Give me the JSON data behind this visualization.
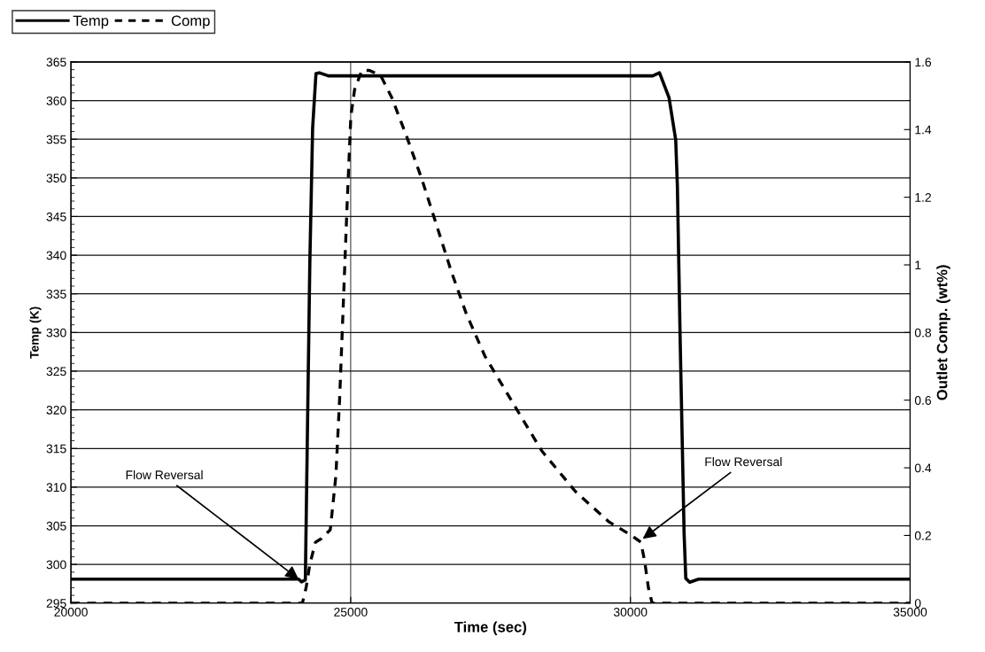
{
  "chart_data": {
    "type": "line",
    "xlabel": "Time (sec)",
    "ylabel": "Temp (K)",
    "y2label": "Outlet Comp. (wt%)",
    "xlim": [
      20000,
      35000
    ],
    "xticks": [
      20000,
      25000,
      30000,
      35000
    ],
    "ylim": [
      295,
      365
    ],
    "yticks": [
      295,
      300,
      305,
      310,
      315,
      320,
      325,
      330,
      335,
      340,
      345,
      350,
      355,
      360,
      365
    ],
    "y2lim": [
      0,
      1.6
    ],
    "y2ticks": [
      0,
      0.2,
      0.4,
      0.6,
      0.8,
      1,
      1.2,
      1.4,
      1.6
    ],
    "grid": true,
    "legend": "top left",
    "marker": "none",
    "series": [
      {
        "name": "Temp",
        "color": "#000000",
        "line_style": "solid",
        "x": [
          20000,
          23000,
          24070,
          24120,
          24190,
          24270,
          24320,
          24380,
          24440,
          24600,
          27000,
          30000,
          30400,
          30520,
          30690,
          30810,
          30840,
          30890,
          30960,
          30990,
          31060,
          31220,
          33000,
          35000
        ],
        "values": [
          298.1,
          298.1,
          298.1,
          297.75,
          298,
          338.9,
          356.4,
          363.5,
          363.6,
          363.2,
          363.2,
          363.2,
          363.2,
          363.6,
          360.4,
          354.9,
          348.9,
          328.9,
          304,
          298.2,
          297.7,
          298.1,
          298.1,
          298.1
        ]
      },
      {
        "name": "Comp",
        "color": "#000000",
        "line_style": "dashed",
        "axis": "y2",
        "x": [
          20000,
          22000,
          24137,
          24204,
          24270,
          24370,
          24470,
          24636,
          24736,
          24803,
          24870,
          24936,
          25003,
          25070,
          25200,
          25335,
          25535,
          25734,
          26000,
          26267,
          26533,
          26800,
          27066,
          27400,
          28015,
          28416,
          29017,
          29619,
          30020,
          30187,
          30254,
          30321,
          30388,
          32000,
          35000
        ],
        "values": [
          0,
          0,
          0,
          0.046,
          0.114,
          0.18,
          0.19,
          0.217,
          0.377,
          0.605,
          0.89,
          1.176,
          1.438,
          1.518,
          1.575,
          1.575,
          1.56,
          1.495,
          1.38,
          1.256,
          1.119,
          0.98,
          0.856,
          0.73,
          0.56,
          0.45,
          0.33,
          0.24,
          0.2,
          0.18,
          0.125,
          0.046,
          0,
          0,
          0
        ]
      }
    ],
    "annotations": [
      {
        "text": "Flow Reversal",
        "x": 24070,
        "y": 298.1
      },
      {
        "text": "Flow Reversal",
        "x": 30220,
        "y": 303.3
      }
    ]
  }
}
